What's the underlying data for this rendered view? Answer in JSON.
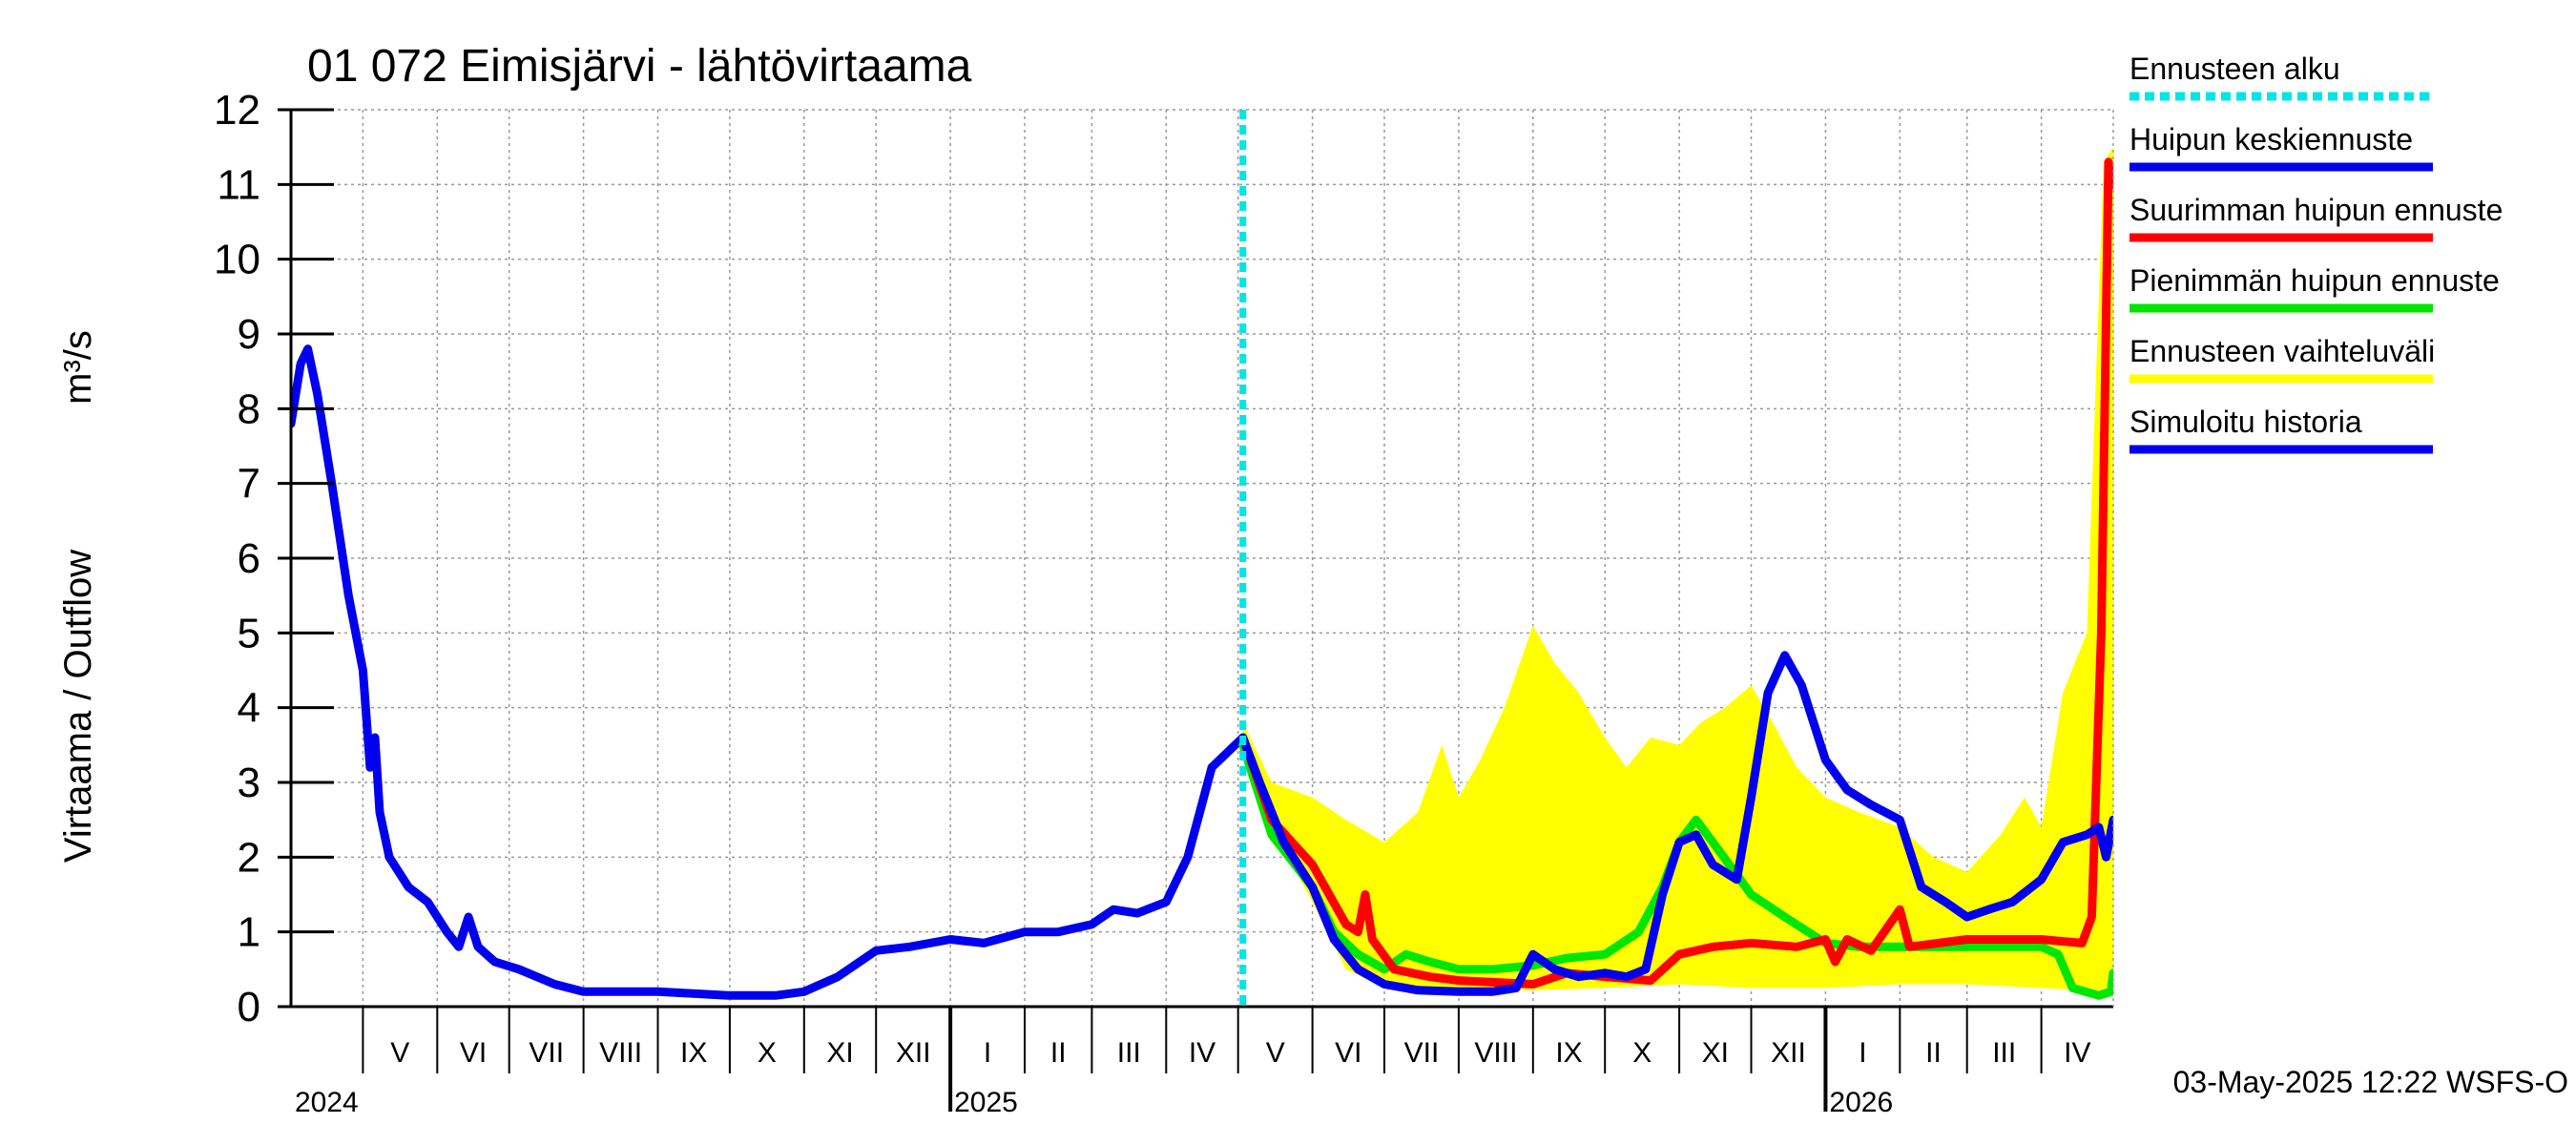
{
  "chart_data": {
    "type": "line",
    "title": "01 072 Eimisjärvi - lähtövirtaama",
    "ylabel": "Virtaama / Outflow",
    "yunit": "m³/s",
    "ylim": [
      0,
      12
    ],
    "yticks": [
      0,
      1,
      2,
      3,
      4,
      5,
      6,
      7,
      8,
      9,
      10,
      11,
      12
    ],
    "xlim": [
      "2024-04-01",
      "2026-05-01"
    ],
    "grid": true,
    "legend_position": "right",
    "forecast_start": "2025-05-03",
    "months": [
      {
        "label": "V",
        "start": "2024-05-01",
        "end": "2024-06-01"
      },
      {
        "label": "VI",
        "start": "2024-06-01",
        "end": "2024-07-01"
      },
      {
        "label": "VII",
        "start": "2024-07-01",
        "end": "2024-08-01"
      },
      {
        "label": "VIII",
        "start": "2024-08-01",
        "end": "2024-09-01"
      },
      {
        "label": "IX",
        "start": "2024-09-01",
        "end": "2024-10-01"
      },
      {
        "label": "X",
        "start": "2024-10-01",
        "end": "2024-11-01"
      },
      {
        "label": "XI",
        "start": "2024-11-01",
        "end": "2024-12-01"
      },
      {
        "label": "XII",
        "start": "2024-12-01",
        "end": "2025-01-01"
      },
      {
        "label": "I",
        "start": "2025-01-01",
        "end": "2025-02-01"
      },
      {
        "label": "II",
        "start": "2025-02-01",
        "end": "2025-03-01"
      },
      {
        "label": "III",
        "start": "2025-03-01",
        "end": "2025-04-01"
      },
      {
        "label": "IV",
        "start": "2025-04-01",
        "end": "2025-05-01"
      },
      {
        "label": "V",
        "start": "2025-05-01",
        "end": "2025-06-01"
      },
      {
        "label": "VI",
        "start": "2025-06-01",
        "end": "2025-07-01"
      },
      {
        "label": "VII",
        "start": "2025-07-01",
        "end": "2025-08-01"
      },
      {
        "label": "VIII",
        "start": "2025-08-01",
        "end": "2025-09-01"
      },
      {
        "label": "IX",
        "start": "2025-09-01",
        "end": "2025-10-01"
      },
      {
        "label": "X",
        "start": "2025-10-01",
        "end": "2025-11-01"
      },
      {
        "label": "XI",
        "start": "2025-11-01",
        "end": "2025-12-01"
      },
      {
        "label": "XII",
        "start": "2025-12-01",
        "end": "2026-01-01"
      },
      {
        "label": "I",
        "start": "2026-01-01",
        "end": "2026-02-01"
      },
      {
        "label": "II",
        "start": "2026-02-01",
        "end": "2026-03-01"
      },
      {
        "label": "III",
        "start": "2026-03-01",
        "end": "2026-04-01"
      },
      {
        "label": "IV",
        "start": "2026-04-01",
        "end": "2026-05-01"
      }
    ],
    "years": [
      {
        "label": "2024",
        "at": "2024-04-01"
      },
      {
        "label": "2025",
        "at": "2025-01-01"
      },
      {
        "label": "2026",
        "at": "2026-01-01"
      }
    ],
    "year_boundaries": [
      "2025-01-01",
      "2026-01-01"
    ],
    "legend": [
      {
        "label": "Ennusteen alku",
        "color": "#00e5e5",
        "style": "dashed"
      },
      {
        "label": "Huipun keskiennuste",
        "color": "#0000ee",
        "style": "solid"
      },
      {
        "label": "Suurimman huipun ennuste",
        "color": "#ff0000",
        "style": "solid"
      },
      {
        "label": "Pienimmän huipun ennuste",
        "color": "#00e600",
        "style": "solid"
      },
      {
        "label": "Ennusteen vaihteluväli",
        "color": "#ffff00",
        "style": "solid"
      },
      {
        "label": "Simuloitu historia",
        "color": "#0000ee",
        "style": "solid"
      }
    ],
    "range_band": {
      "name": "Ennusteen vaihteluväli",
      "color": "#ffff00",
      "upper": [
        [
          "2025-05-03",
          3.8
        ],
        [
          "2025-05-15",
          3.0
        ],
        [
          "2025-06-01",
          2.8
        ],
        [
          "2025-06-15",
          2.5
        ],
        [
          "2025-07-01",
          2.2
        ],
        [
          "2025-07-15",
          2.6
        ],
        [
          "2025-07-25",
          3.5
        ],
        [
          "2025-08-01",
          2.8
        ],
        [
          "2025-08-10",
          3.3
        ],
        [
          "2025-08-20",
          4.0
        ],
        [
          "2025-09-01",
          5.1
        ],
        [
          "2025-09-10",
          4.6
        ],
        [
          "2025-09-20",
          4.2
        ],
        [
          "2025-10-01",
          3.6
        ],
        [
          "2025-10-10",
          3.2
        ],
        [
          "2025-10-20",
          3.6
        ],
        [
          "2025-11-01",
          3.5
        ],
        [
          "2025-11-10",
          3.8
        ],
        [
          "2025-11-20",
          4.0
        ],
        [
          "2025-12-01",
          4.3
        ],
        [
          "2025-12-10",
          3.8
        ],
        [
          "2025-12-20",
          3.2
        ],
        [
          "2026-01-01",
          2.8
        ],
        [
          "2026-01-15",
          2.6
        ],
        [
          "2026-02-01",
          2.4
        ],
        [
          "2026-02-15",
          2.0
        ],
        [
          "2026-03-01",
          1.8
        ],
        [
          "2026-03-15",
          2.3
        ],
        [
          "2026-03-25",
          2.8
        ],
        [
          "2026-04-01",
          2.4
        ],
        [
          "2026-04-10",
          4.2
        ],
        [
          "2026-04-20",
          5.0
        ],
        [
          "2026-04-27",
          11.3
        ],
        [
          "2026-05-01",
          11.5
        ]
      ],
      "lower": [
        [
          "2025-05-03",
          3.5
        ],
        [
          "2025-05-15",
          2.4
        ],
        [
          "2025-06-01",
          1.4
        ],
        [
          "2025-06-15",
          0.5
        ],
        [
          "2025-07-01",
          0.25
        ],
        [
          "2025-08-01",
          0.22
        ],
        [
          "2025-09-01",
          0.22
        ],
        [
          "2025-10-01",
          0.25
        ],
        [
          "2025-11-01",
          0.3
        ],
        [
          "2025-12-01",
          0.25
        ],
        [
          "2026-01-01",
          0.25
        ],
        [
          "2026-02-01",
          0.3
        ],
        [
          "2026-03-01",
          0.3
        ],
        [
          "2026-04-01",
          0.25
        ],
        [
          "2026-05-01",
          0.2
        ]
      ]
    },
    "series": [
      {
        "name": "Simuloitu historia",
        "color": "#0000ee",
        "points": [
          [
            "2024-04-01",
            7.8
          ],
          [
            "2024-04-05",
            8.6
          ],
          [
            "2024-04-08",
            8.8
          ],
          [
            "2024-04-12",
            8.2
          ],
          [
            "2024-04-18",
            7.0
          ],
          [
            "2024-04-25",
            5.5
          ],
          [
            "2024-05-01",
            4.5
          ],
          [
            "2024-05-04",
            3.2
          ],
          [
            "2024-05-06",
            3.6
          ],
          [
            "2024-05-08",
            2.6
          ],
          [
            "2024-05-12",
            2.0
          ],
          [
            "2024-05-20",
            1.6
          ],
          [
            "2024-05-28",
            1.4
          ],
          [
            "2024-06-05",
            1.0
          ],
          [
            "2024-06-10",
            0.8
          ],
          [
            "2024-06-14",
            1.2
          ],
          [
            "2024-06-18",
            0.8
          ],
          [
            "2024-06-25",
            0.6
          ],
          [
            "2024-07-05",
            0.5
          ],
          [
            "2024-07-20",
            0.3
          ],
          [
            "2024-08-01",
            0.2
          ],
          [
            "2024-09-01",
            0.2
          ],
          [
            "2024-10-01",
            0.15
          ],
          [
            "2024-10-20",
            0.15
          ],
          [
            "2024-11-01",
            0.2
          ],
          [
            "2024-11-15",
            0.4
          ],
          [
            "2024-12-01",
            0.75
          ],
          [
            "2024-12-15",
            0.8
          ],
          [
            "2025-01-01",
            0.9
          ],
          [
            "2025-01-15",
            0.85
          ],
          [
            "2025-02-01",
            1.0
          ],
          [
            "2025-02-15",
            1.0
          ],
          [
            "2025-03-01",
            1.1
          ],
          [
            "2025-03-10",
            1.3
          ],
          [
            "2025-03-20",
            1.25
          ],
          [
            "2025-04-01",
            1.4
          ],
          [
            "2025-04-10",
            2.0
          ],
          [
            "2025-04-20",
            3.2
          ],
          [
            "2025-05-03",
            3.6
          ]
        ]
      },
      {
        "name": "Huipun keskiennuste",
        "color": "#0000ee",
        "points": [
          [
            "2025-05-03",
            3.6
          ],
          [
            "2025-05-10",
            3.0
          ],
          [
            "2025-05-20",
            2.2
          ],
          [
            "2025-06-01",
            1.6
          ],
          [
            "2025-06-10",
            0.9
          ],
          [
            "2025-06-20",
            0.5
          ],
          [
            "2025-07-01",
            0.3
          ],
          [
            "2025-07-15",
            0.22
          ],
          [
            "2025-08-01",
            0.2
          ],
          [
            "2025-08-15",
            0.2
          ],
          [
            "2025-08-25",
            0.25
          ],
          [
            "2025-09-01",
            0.7
          ],
          [
            "2025-09-10",
            0.5
          ],
          [
            "2025-09-20",
            0.4
          ],
          [
            "2025-10-01",
            0.45
          ],
          [
            "2025-10-10",
            0.4
          ],
          [
            "2025-10-18",
            0.5
          ],
          [
            "2025-10-25",
            1.5
          ],
          [
            "2025-11-01",
            2.2
          ],
          [
            "2025-11-08",
            2.3
          ],
          [
            "2025-11-15",
            1.9
          ],
          [
            "2025-11-25",
            1.7
          ],
          [
            "2025-12-01",
            2.8
          ],
          [
            "2025-12-08",
            4.2
          ],
          [
            "2025-12-15",
            4.7
          ],
          [
            "2025-12-22",
            4.3
          ],
          [
            "2026-01-01",
            3.3
          ],
          [
            "2026-01-10",
            2.9
          ],
          [
            "2026-01-20",
            2.7
          ],
          [
            "2026-02-01",
            2.5
          ],
          [
            "2026-02-10",
            1.6
          ],
          [
            "2026-02-20",
            1.4
          ],
          [
            "2026-03-01",
            1.2
          ],
          [
            "2026-03-10",
            1.3
          ],
          [
            "2026-03-20",
            1.4
          ],
          [
            "2026-04-01",
            1.7
          ],
          [
            "2026-04-10",
            2.2
          ],
          [
            "2026-04-20",
            2.3
          ],
          [
            "2026-04-25",
            2.4
          ],
          [
            "2026-04-28",
            2.0
          ],
          [
            "2026-05-01",
            2.5
          ]
        ]
      },
      {
        "name": "Suurimman huipun ennuste",
        "color": "#ff0000",
        "points": [
          [
            "2025-05-03",
            3.6
          ],
          [
            "2025-05-15",
            2.5
          ],
          [
            "2025-06-01",
            1.9
          ],
          [
            "2025-06-15",
            1.1
          ],
          [
            "2025-06-20",
            1.0
          ],
          [
            "2025-06-23",
            1.5
          ],
          [
            "2025-06-26",
            0.9
          ],
          [
            "2025-07-05",
            0.5
          ],
          [
            "2025-07-20",
            0.4
          ],
          [
            "2025-08-01",
            0.35
          ],
          [
            "2025-09-01",
            0.3
          ],
          [
            "2025-09-15",
            0.45
          ],
          [
            "2025-10-01",
            0.4
          ],
          [
            "2025-10-20",
            0.35
          ],
          [
            "2025-11-01",
            0.7
          ],
          [
            "2025-11-15",
            0.8
          ],
          [
            "2025-12-01",
            0.85
          ],
          [
            "2025-12-20",
            0.8
          ],
          [
            "2026-01-01",
            0.9
          ],
          [
            "2026-01-05",
            0.6
          ],
          [
            "2026-01-10",
            0.9
          ],
          [
            "2026-01-20",
            0.75
          ],
          [
            "2026-02-01",
            1.3
          ],
          [
            "2026-02-05",
            0.8
          ],
          [
            "2026-03-01",
            0.9
          ],
          [
            "2026-04-01",
            0.9
          ],
          [
            "2026-04-18",
            0.85
          ],
          [
            "2026-04-22",
            1.2
          ],
          [
            "2026-04-26",
            5.0
          ],
          [
            "2026-04-29",
            11.3
          ],
          [
            "2026-05-01",
            11.0
          ]
        ]
      },
      {
        "name": "Pienimmän huipun ennuste",
        "color": "#00e600",
        "points": [
          [
            "2025-05-03",
            3.5
          ],
          [
            "2025-05-15",
            2.3
          ],
          [
            "2025-06-01",
            1.6
          ],
          [
            "2025-06-10",
            1.0
          ],
          [
            "2025-06-20",
            0.7
          ],
          [
            "2025-07-01",
            0.5
          ],
          [
            "2025-07-10",
            0.7
          ],
          [
            "2025-07-20",
            0.6
          ],
          [
            "2025-08-01",
            0.5
          ],
          [
            "2025-08-15",
            0.5
          ],
          [
            "2025-09-01",
            0.55
          ],
          [
            "2025-09-15",
            0.65
          ],
          [
            "2025-10-01",
            0.7
          ],
          [
            "2025-10-15",
            1.0
          ],
          [
            "2025-10-25",
            1.6
          ],
          [
            "2025-11-01",
            2.2
          ],
          [
            "2025-11-08",
            2.5
          ],
          [
            "2025-11-15",
            2.2
          ],
          [
            "2025-12-01",
            1.5
          ],
          [
            "2025-12-15",
            1.2
          ],
          [
            "2026-01-01",
            0.85
          ],
          [
            "2026-01-15",
            0.8
          ],
          [
            "2026-02-01",
            0.8
          ],
          [
            "2026-03-01",
            0.8
          ],
          [
            "2026-04-01",
            0.8
          ],
          [
            "2026-04-08",
            0.7
          ],
          [
            "2026-04-14",
            0.25
          ],
          [
            "2026-04-25",
            0.15
          ],
          [
            "2026-04-30",
            0.2
          ],
          [
            "2026-05-01",
            0.45
          ]
        ]
      }
    ],
    "footer": "03-May-2025 12:22 WSFS-O"
  }
}
